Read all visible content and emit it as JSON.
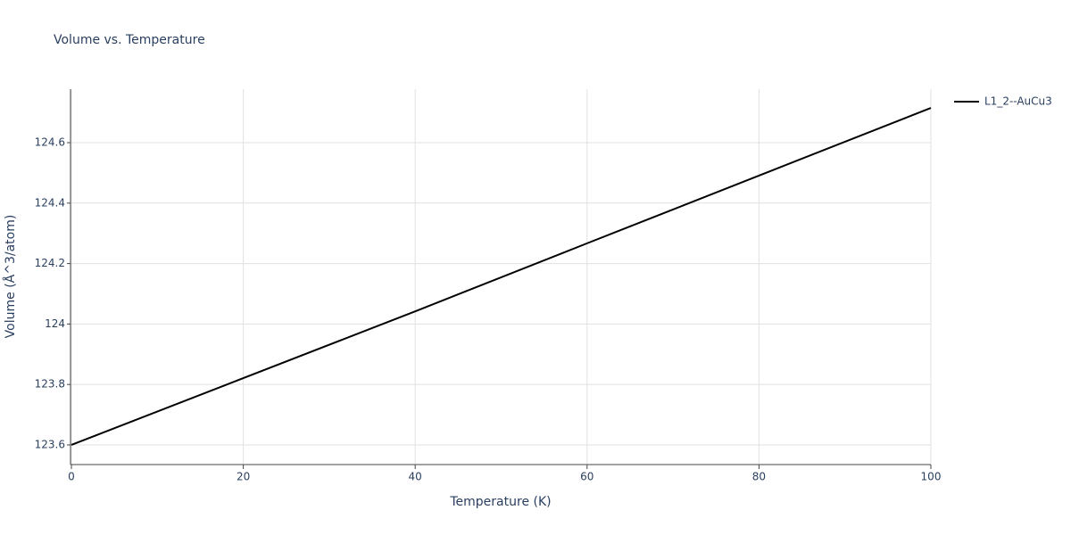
{
  "chart_data": {
    "type": "line",
    "title": "Volume vs. Temperature",
    "x_label": "Temperature (K)",
    "y_label": "Volume (Å^3/atom)",
    "x": [
      0,
      20,
      40,
      60,
      80,
      100
    ],
    "series": [
      {
        "name": "L1_2--AuCu3",
        "color": "#000000",
        "values": [
          123.6,
          123.821,
          124.042,
          124.267,
          124.491,
          124.715
        ]
      }
    ],
    "xlim": [
      0,
      100
    ],
    "xticks": [
      0,
      20,
      40,
      60,
      80,
      100
    ],
    "ylim": [
      123.538,
      124.777
    ],
    "yticks": [
      123.6,
      123.8,
      124,
      124.2,
      124.4,
      124.6
    ],
    "grid": true,
    "legend": "top-right"
  }
}
